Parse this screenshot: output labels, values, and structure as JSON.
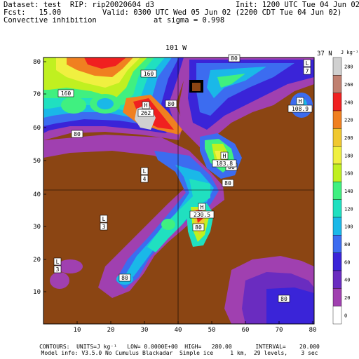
{
  "header": {
    "line1_left": "Dataset: test  RIP: rip20020604 d3",
    "line1_right": "Init: 1200 UTC Tue 04 Jun 02",
    "line2_left": "Fcst:   15.00",
    "line2_right": "Valid: 0300 UTC Wed 05 Jun 02 (2200 CDT Tue 04 Jun 02)",
    "line3_left": "Convective inhibition",
    "line3_right": "at sigma = 0.998"
  },
  "map": {
    "top_label": "101 W",
    "right_label": "37 N",
    "x_ticks": [
      "10",
      "20",
      "30",
      "40",
      "50",
      "60",
      "70",
      "80"
    ],
    "y_ticks": [
      "10",
      "20",
      "30",
      "40",
      "50",
      "60",
      "70",
      "80"
    ],
    "contour_labels": [
      "160",
      "160",
      "80",
      "80",
      "80",
      "80",
      "80",
      "80",
      "80",
      "80"
    ],
    "highs": [
      {
        "letter": "H",
        "value": "262"
      },
      {
        "letter": "H",
        "value": "183.8"
      },
      {
        "letter": "H",
        "value": "230.5"
      },
      {
        "letter": "H",
        "value": "108.9"
      }
    ],
    "lows": [
      {
        "letter": "L",
        "value": "4"
      },
      {
        "letter": "L",
        "value": "3"
      },
      {
        "letter": "L",
        "value": "3"
      },
      {
        "letter": "L",
        "value": "7"
      }
    ],
    "colors": {
      "terrain": "#8b4513",
      "level_0_20": "#a040b0",
      "level_20_40": "#6a2cc0",
      "level_40_60": "#3a24d8",
      "level_60_80": "#3c6cf0",
      "level_80_100": "#1ab8e8",
      "level_100_120": "#20e0c0",
      "level_120_140": "#40f080",
      "level_140_160": "#c0f020",
      "level_160_180": "#f0f040",
      "level_180_200": "#f0c830",
      "level_200_220": "#f08020",
      "level_220_240": "#f02020",
      "level_240_260": "#c08070",
      "level_260_280": "#d0d0d0"
    }
  },
  "colorbar": {
    "units": "J kg⁻¹",
    "labels": [
      "280",
      "260",
      "240",
      "220",
      "200",
      "180",
      "160",
      "140",
      "120",
      "100",
      "80",
      "60",
      "40",
      "20",
      "0"
    ],
    "colors": [
      "#d0d0d0",
      "#c08070",
      "#f02020",
      "#f08020",
      "#f0c830",
      "#f0f040",
      "#c0f020",
      "#40f080",
      "#20e0c0",
      "#1ab8e8",
      "#3c6cf0",
      "#3a24d8",
      "#6a2cc0",
      "#a040b0",
      "#ffffff"
    ]
  },
  "footer": {
    "line1": "CONTOURS:  UNITS=J kg⁻¹   LOW= 0.0000E+00  HIGH=   280.00       INTERVAL=    20.000",
    "line2": "Model info: V3.5.0 No Cumulus Blackadar  Simple ice     1 km,  29 levels,    3 sec"
  }
}
